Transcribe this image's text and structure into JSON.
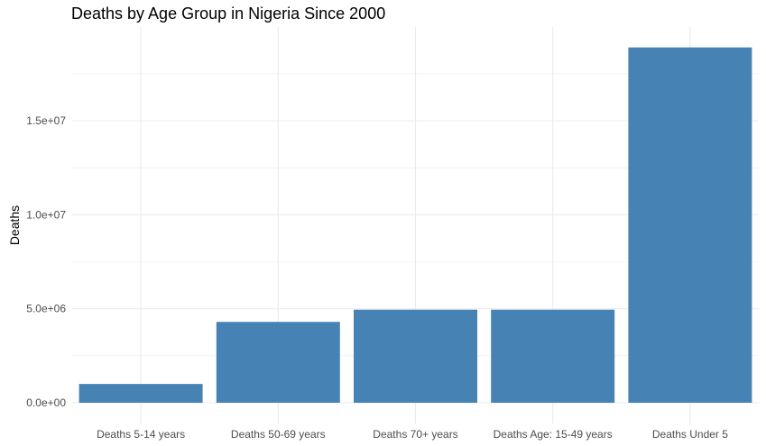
{
  "chart_data": {
    "type": "bar",
    "title": "Deaths by Age Group in Nigeria Since 2000",
    "xlabel": "",
    "ylabel": "Deaths",
    "categories": [
      "Deaths 5-14 years",
      "Deaths 50-69 years",
      "Deaths 70+ years",
      "Deaths Age: 15-49 years",
      "Deaths Under 5"
    ],
    "values": [
      1000000,
      4300000,
      4950000,
      4950000,
      18900000
    ],
    "ylim": [
      0,
      19800000
    ],
    "yticks": [
      0,
      5000000,
      10000000,
      15000000
    ],
    "ytick_labels": [
      "0.0e+00",
      "5.0e+06",
      "1.0e+07",
      "1.5e+07"
    ],
    "grid": true,
    "legend": "none",
    "colors": {
      "bar": "#4682b4",
      "grid": "#ebebeb",
      "tick_text": "#4d4d4d"
    }
  }
}
